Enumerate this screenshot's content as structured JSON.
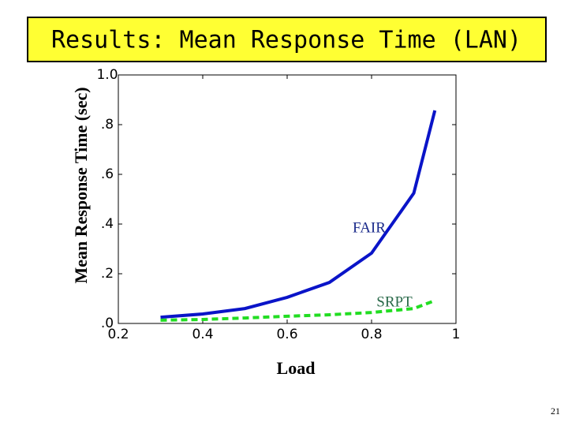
{
  "chart_data": {
    "type": "line",
    "title": "Results:  Mean Response Time (LAN)",
    "xlabel": "Load",
    "ylabel": "Mean Response Time (sec)",
    "x": [
      0.3,
      0.4,
      0.5,
      0.6,
      0.7,
      0.8,
      0.9,
      0.95
    ],
    "series": [
      {
        "name": "FAIR",
        "color": "#0a14c8",
        "dash": false,
        "values": [
          0.025,
          0.038,
          0.06,
          0.105,
          0.165,
          0.283,
          0.524,
          0.857
        ]
      },
      {
        "name": "SRPT",
        "color": "#22dd22",
        "dash": true,
        "values": [
          0.013,
          0.016,
          0.022,
          0.029,
          0.035,
          0.044,
          0.06,
          0.092
        ]
      }
    ],
    "xlim": [
      0.2,
      1
    ],
    "xticks": [
      0.2,
      0.4,
      0.6,
      0.8,
      1
    ],
    "ylim": [
      0,
      1
    ],
    "yticks": [
      {
        "value": 0,
        "label": ".0"
      },
      {
        "value": 0.2,
        "label": ".2"
      },
      {
        "value": 0.4,
        "label": ".4"
      },
      {
        "value": 0.6,
        "label": ".6"
      },
      {
        "value": 0.8,
        "label": ".8"
      },
      {
        "value": 1,
        "label": "1.0"
      }
    ],
    "grid": false,
    "page_number": "21"
  }
}
